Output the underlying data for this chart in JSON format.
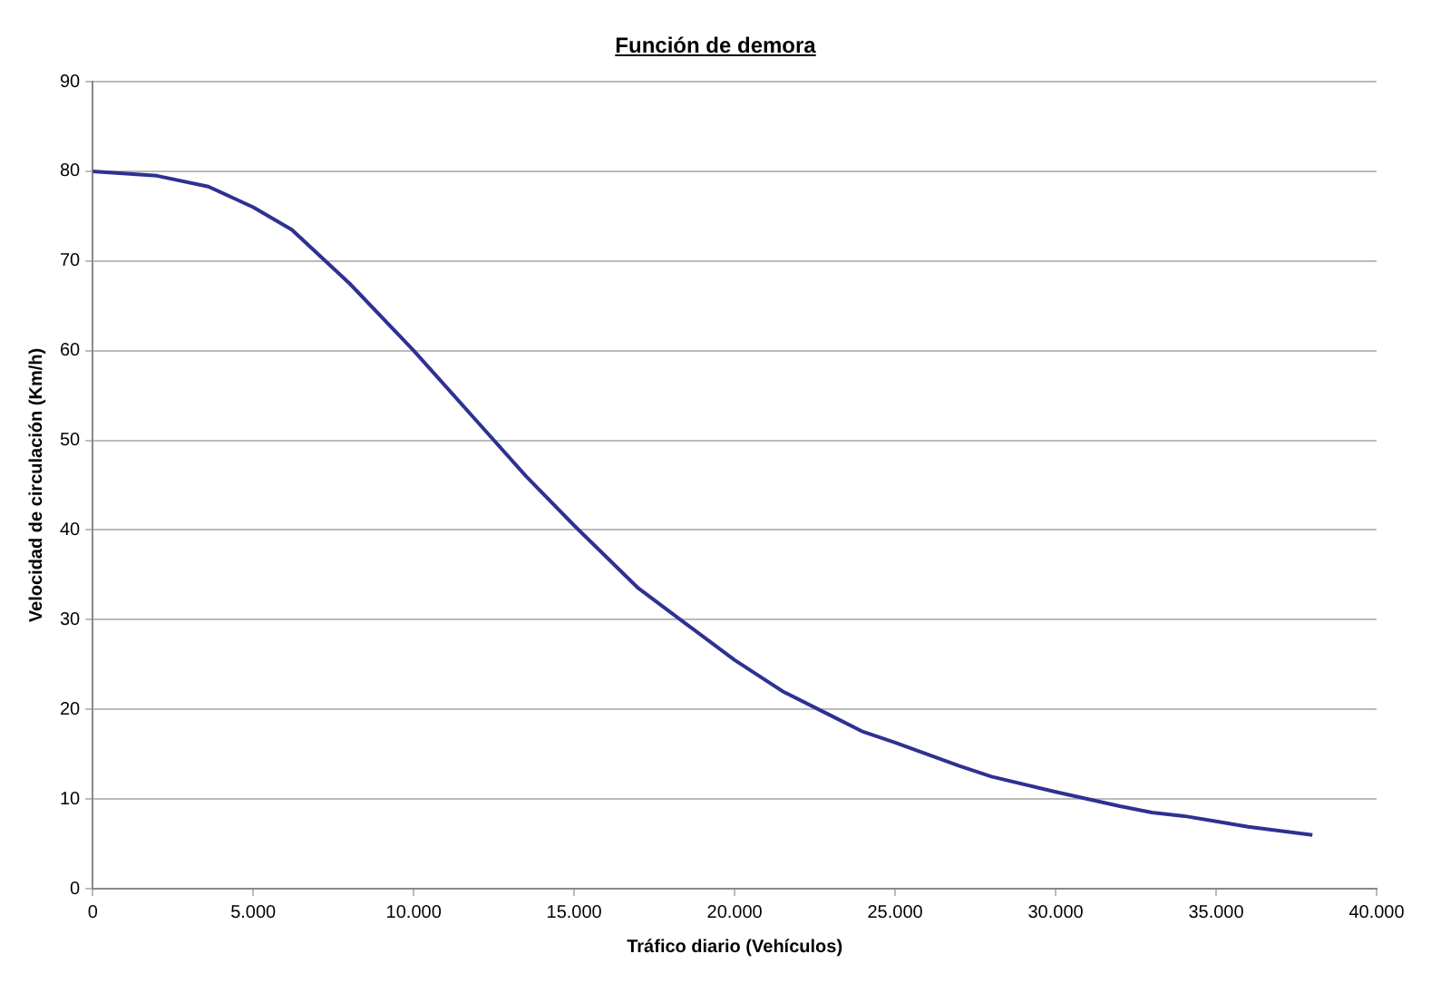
{
  "chart_data": {
    "type": "line",
    "title": "Función de demora",
    "xlabel": "Tráfico diario (Vehículos)",
    "ylabel": "Velocidad de circulación (Km/h)",
    "x": [
      0,
      2000,
      3600,
      5000,
      6200,
      8000,
      10000,
      12000,
      13500,
      15000,
      17000,
      18500,
      20000,
      21500,
      23000,
      24000,
      25000,
      27000,
      28000,
      30000,
      32000,
      33000,
      34000,
      35000,
      36000,
      38000
    ],
    "series": [
      {
        "color": "#2e3192",
        "values": [
          80,
          79.5,
          78.3,
          76,
          73.5,
          67.5,
          60,
          52,
          46,
          40.5,
          33.5,
          29.5,
          25.5,
          22,
          19.3,
          17.5,
          16.3,
          13.7,
          12.5,
          10.8,
          9.2,
          8.5,
          8.1,
          7.5,
          6.9,
          6
        ]
      }
    ],
    "xlim": [
      0,
      40000
    ],
    "xticks": [
      0,
      {
        "value": 5000,
        "label": "5.000"
      },
      {
        "value": 10000,
        "label": "10.000"
      },
      {
        "value": 15000,
        "label": "15.000"
      },
      {
        "value": 20000,
        "label": "20.000"
      },
      {
        "value": 25000,
        "label": "25.000"
      },
      {
        "value": 30000,
        "label": "30.000"
      },
      {
        "value": 35000,
        "label": "35.000"
      },
      {
        "value": 40000,
        "label": "40.000"
      }
    ],
    "ylim": [
      0,
      90
    ],
    "yticks": [
      0,
      10,
      20,
      30,
      40,
      50,
      60,
      70,
      80,
      90
    ],
    "grid": "y",
    "legend": false,
    "marker": "none",
    "line_style": "solid"
  }
}
